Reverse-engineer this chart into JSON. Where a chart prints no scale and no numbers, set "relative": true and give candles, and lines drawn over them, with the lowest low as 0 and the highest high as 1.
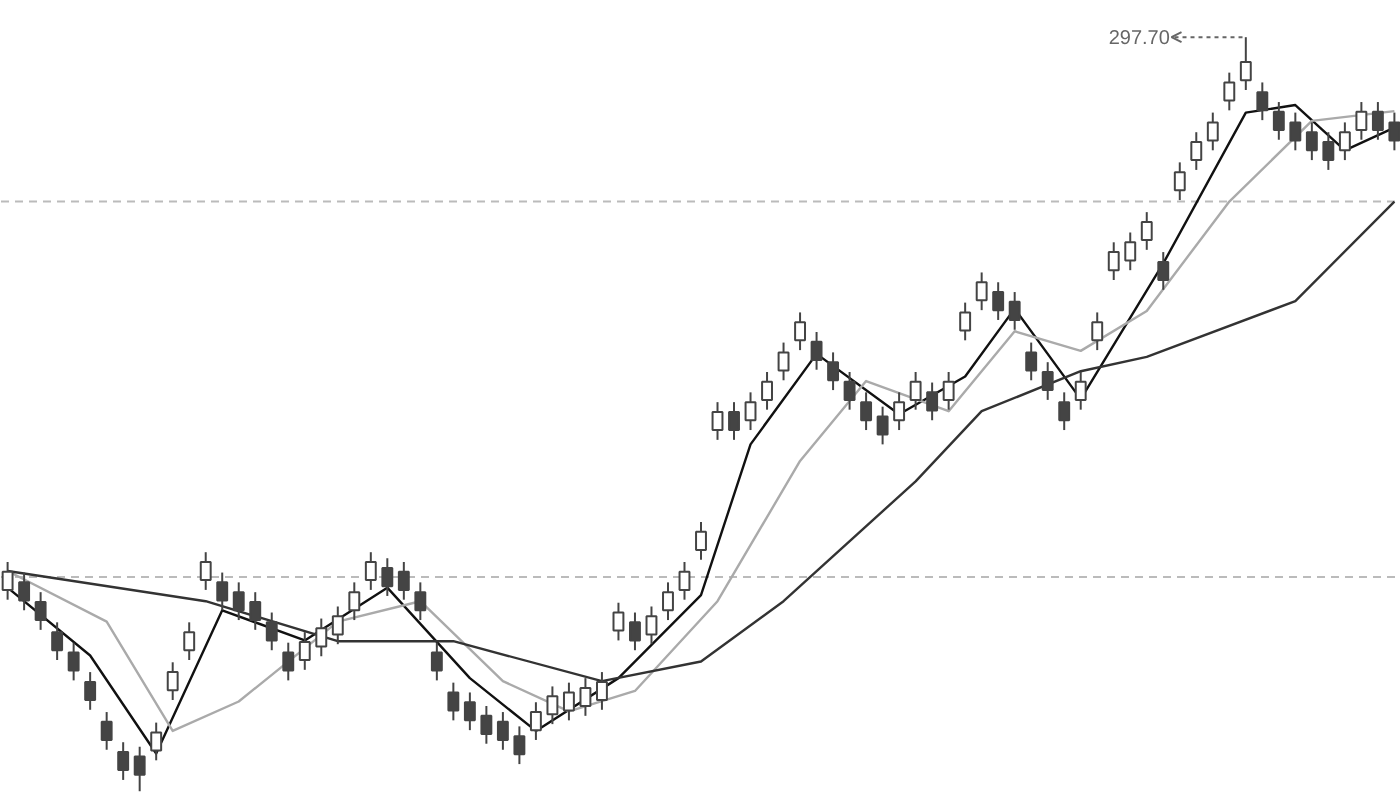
{
  "chart_data": {
    "type": "candlestick",
    "relative": true,
    "color": "#444444",
    "categories": [
      null,
      null,
      null,
      null,
      null,
      null,
      null,
      null,
      null,
      null,
      null,
      null,
      null,
      null,
      null,
      null,
      null,
      null,
      null,
      null,
      null,
      null,
      null,
      null,
      null,
      null,
      null,
      null,
      null,
      null,
      null,
      null,
      null,
      null,
      null,
      null,
      null,
      null,
      null,
      null,
      null,
      null,
      null,
      null,
      null,
      null,
      null,
      null,
      null,
      null,
      null,
      null,
      null,
      null,
      null,
      null,
      null,
      null,
      null,
      null,
      null,
      null,
      null,
      null,
      null,
      null,
      null,
      null,
      null,
      null,
      null,
      null,
      null,
      null,
      null,
      null,
      null,
      null,
      null,
      null,
      null,
      null,
      null,
      null,
      null
    ],
    "ohlc": [
      [
        0.267,
        0.304,
        0.254,
        0.291
      ],
      [
        0.277,
        0.29,
        0.24,
        0.253
      ],
      [
        0.251,
        0.264,
        0.214,
        0.227
      ],
      [
        0.211,
        0.224,
        0.174,
        0.187
      ],
      [
        0.184,
        0.197,
        0.147,
        0.16
      ],
      [
        0.145,
        0.158,
        0.108,
        0.121
      ],
      [
        0.092,
        0.105,
        0.055,
        0.068
      ],
      [
        0.052,
        0.065,
        0.015,
        0.028
      ],
      [
        0.046,
        0.059,
        0,
        0.022
      ],
      [
        0.054,
        0.091,
        0.041,
        0.078
      ],
      [
        0.134,
        0.171,
        0.121,
        0.158
      ],
      [
        0.187,
        0.224,
        0.174,
        0.211
      ],
      [
        0.28,
        0.317,
        0.267,
        0.304
      ],
      [
        0.277,
        0.29,
        0.24,
        0.253
      ],
      [
        0.264,
        0.277,
        0.227,
        0.24
      ],
      [
        0.251,
        0.264,
        0.214,
        0.227
      ],
      [
        0.224,
        0.237,
        0.187,
        0.2
      ],
      [
        0.184,
        0.197,
        0.147,
        0.16
      ],
      [
        0.174,
        0.211,
        0.161,
        0.198
      ],
      [
        0.192,
        0.229,
        0.179,
        0.216
      ],
      [
        0.208,
        0.245,
        0.195,
        0.232
      ],
      [
        0.24,
        0.277,
        0.227,
        0.264
      ],
      [
        0.28,
        0.317,
        0.267,
        0.304
      ],
      [
        0.296,
        0.309,
        0.259,
        0.272
      ],
      [
        0.291,
        0.304,
        0.254,
        0.267
      ],
      [
        0.264,
        0.277,
        0.227,
        0.24
      ],
      [
        0.184,
        0.197,
        0.147,
        0.16
      ],
      [
        0.131,
        0.144,
        0.094,
        0.107
      ],
      [
        0.118,
        0.131,
        0.081,
        0.094
      ],
      [
        0.1,
        0.113,
        0.063,
        0.076
      ],
      [
        0.092,
        0.105,
        0.055,
        0.068
      ],
      [
        0.073,
        0.086,
        0.036,
        0.049
      ],
      [
        0.081,
        0.118,
        0.068,
        0.105
      ],
      [
        0.102,
        0.139,
        0.089,
        0.126
      ],
      [
        0.107,
        0.144,
        0.094,
        0.131
      ],
      [
        0.113,
        0.15,
        0.1,
        0.137
      ],
      [
        0.121,
        0.158,
        0.108,
        0.145
      ],
      [
        0.213,
        0.25,
        0.2,
        0.237
      ],
      [
        0.224,
        0.237,
        0.187,
        0.2
      ],
      [
        0.208,
        0.245,
        0.195,
        0.232
      ],
      [
        0.24,
        0.277,
        0.227,
        0.264
      ],
      [
        0.267,
        0.304,
        0.254,
        0.291
      ],
      [
        0.32,
        0.357,
        0.307,
        0.344
      ],
      [
        0.479,
        0.516,
        0.466,
        0.503
      ],
      [
        0.503,
        0.516,
        0.466,
        0.479
      ],
      [
        0.492,
        0.529,
        0.479,
        0.516
      ],
      [
        0.519,
        0.556,
        0.506,
        0.543
      ],
      [
        0.558,
        0.595,
        0.545,
        0.582
      ],
      [
        0.598,
        0.635,
        0.585,
        0.622
      ],
      [
        0.596,
        0.609,
        0.559,
        0.572
      ],
      [
        0.569,
        0.582,
        0.532,
        0.545
      ],
      [
        0.543,
        0.556,
        0.506,
        0.519
      ],
      [
        0.516,
        0.529,
        0.479,
        0.492
      ],
      [
        0.497,
        0.51,
        0.46,
        0.473
      ],
      [
        0.492,
        0.529,
        0.479,
        0.516
      ],
      [
        0.519,
        0.556,
        0.506,
        0.543
      ],
      [
        0.529,
        0.542,
        0.492,
        0.505
      ],
      [
        0.519,
        0.556,
        0.506,
        0.543
      ],
      [
        0.611,
        0.648,
        0.598,
        0.635
      ],
      [
        0.651,
        0.688,
        0.638,
        0.675
      ],
      [
        0.662,
        0.675,
        0.625,
        0.638
      ],
      [
        0.649,
        0.662,
        0.612,
        0.625
      ],
      [
        0.582,
        0.595,
        0.545,
        0.558
      ],
      [
        0.556,
        0.569,
        0.519,
        0.532
      ],
      [
        0.516,
        0.529,
        0.479,
        0.492
      ],
      [
        0.519,
        0.556,
        0.506,
        0.543
      ],
      [
        0.598,
        0.635,
        0.585,
        0.622
      ],
      [
        0.691,
        0.728,
        0.678,
        0.715
      ],
      [
        0.704,
        0.741,
        0.691,
        0.728
      ],
      [
        0.731,
        0.768,
        0.718,
        0.755
      ],
      [
        0.702,
        0.715,
        0.665,
        0.678
      ],
      [
        0.797,
        0.834,
        0.784,
        0.821
      ],
      [
        0.837,
        0.874,
        0.824,
        0.861
      ],
      [
        0.863,
        0.9,
        0.85,
        0.887
      ],
      [
        0.916,
        0.953,
        0.903,
        0.94
      ],
      [
        0.943,
        1.0,
        0.93,
        0.967
      ],
      [
        0.927,
        0.94,
        0.89,
        0.903
      ],
      [
        0.901,
        0.914,
        0.864,
        0.877
      ],
      [
        0.887,
        0.9,
        0.85,
        0.863
      ],
      [
        0.874,
        0.887,
        0.837,
        0.85
      ],
      [
        0.861,
        0.874,
        0.824,
        0.837
      ],
      [
        0.85,
        0.887,
        0.837,
        0.874
      ],
      [
        0.877,
        0.914,
        0.864,
        0.901
      ],
      [
        0.901,
        0.914,
        0.864,
        0.877
      ],
      [
        0.887,
        0.9,
        0.85,
        0.863
      ]
    ],
    "series": [
      {
        "type": "line",
        "color": "#111111",
        "values": [
          0.27,
          null,
          null,
          null,
          null,
          0.18,
          null,
          null,
          null,
          0.05,
          null,
          null,
          null,
          0.24,
          null,
          null,
          null,
          null,
          0.2,
          null,
          null,
          null,
          null,
          0.27,
          null,
          null,
          null,
          null,
          0.15,
          null,
          null,
          null,
          0.08,
          null,
          null,
          null,
          null,
          0.15,
          null,
          null,
          null,
          null,
          0.26,
          null,
          null,
          0.46,
          null,
          null,
          null,
          0.58,
          null,
          null,
          null,
          null,
          0.5,
          null,
          null,
          null,
          0.55,
          null,
          null,
          0.64,
          null,
          null,
          null,
          0.52,
          null,
          null,
          null,
          null,
          0.7,
          null,
          null,
          null,
          null,
          0.9,
          null,
          null,
          0.91,
          null,
          null,
          0.85,
          null,
          null,
          0.88
        ]
      },
      {
        "type": "line",
        "color": "#aaaaaa",
        "values": [
          0.292,
          null,
          null,
          null,
          null,
          null,
          0.225,
          null,
          null,
          null,
          0.08,
          null,
          null,
          null,
          0.119,
          null,
          null,
          null,
          null,
          null,
          0.225,
          null,
          null,
          null,
          null,
          0.252,
          null,
          null,
          null,
          null,
          0.146,
          null,
          null,
          null,
          0.106,
          null,
          null,
          null,
          0.133,
          null,
          null,
          null,
          null,
          0.252,
          null,
          null,
          null,
          null,
          0.438,
          null,
          null,
          null,
          0.544,
          null,
          null,
          null,
          null,
          0.504,
          null,
          null,
          null,
          0.61,
          null,
          null,
          null,
          0.584,
          null,
          null,
          null,
          0.637,
          null,
          null,
          null,
          null,
          0.782,
          null,
          null,
          null,
          null,
          0.889,
          null,
          null,
          null,
          null,
          0.902
        ]
      },
      {
        "type": "line",
        "color": "#333333",
        "values": [
          0.292,
          null,
          null,
          null,
          null,
          null,
          null,
          null,
          null,
          null,
          null,
          null,
          0.252,
          null,
          null,
          null,
          null,
          null,
          null,
          null,
          0.199,
          null,
          null,
          null,
          null,
          null,
          null,
          0.199,
          null,
          null,
          null,
          null,
          null,
          null,
          null,
          null,
          0.146,
          null,
          null,
          null,
          null,
          null,
          0.172,
          null,
          null,
          null,
          null,
          0.252,
          null,
          null,
          null,
          null,
          null,
          null,
          null,
          0.411,
          null,
          null,
          null,
          0.504,
          null,
          null,
          null,
          null,
          null,
          0.557,
          null,
          null,
          null,
          0.576,
          null,
          null,
          null,
          null,
          null,
          null,
          null,
          null,
          0.65,
          null,
          null,
          null,
          null,
          null,
          0.782
        ]
      }
    ],
    "ref_lines": [
      {
        "axis": "y",
        "value": 0.782,
        "color": "#bbbbbb",
        "line_style": "dashed"
      },
      {
        "axis": "y",
        "value": 0.284,
        "color": "#bbbbbb",
        "line_style": "dashed"
      }
    ],
    "annotations": [
      "297.70"
    ],
    "grid": false
  }
}
